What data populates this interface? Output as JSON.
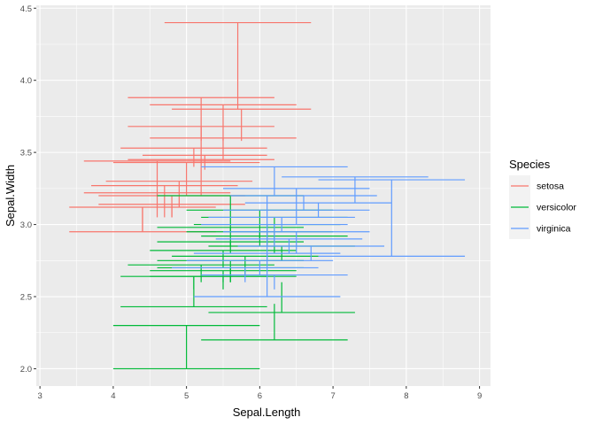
{
  "chart_data": {
    "type": "errorbar",
    "xlabel": "Sepal.Length",
    "ylabel": "Sepal.Width",
    "xlim": [
      2.95,
      9.15
    ],
    "ylim": [
      1.88,
      4.52
    ],
    "xticks": [
      "3",
      "4",
      "5",
      "6",
      "7",
      "8",
      "9"
    ],
    "xtick_values": [
      3,
      4,
      5,
      6,
      7,
      8,
      9
    ],
    "yticks": [
      "2.0",
      "2.5",
      "3.0",
      "3.5",
      "4.0",
      "4.5"
    ],
    "ytick_values": [
      2.0,
      2.5,
      3.0,
      3.5,
      4.0,
      4.5
    ],
    "grid": true,
    "legend": {
      "title": "Species",
      "position": "right"
    },
    "series": [
      {
        "name": "setosa",
        "color": "#F8766D",
        "bars": [
          {
            "xmin": 4.7,
            "xmax": 6.7,
            "y": 4.4,
            "ymin": 3.8,
            "ymax": 4.4
          },
          {
            "xmin": 4.2,
            "xmax": 6.2,
            "y": 3.88,
            "ymin": 3.58,
            "ymax": 3.88
          },
          {
            "xmin": 4.5,
            "xmax": 6.5,
            "y": 3.83,
            "ymin": 3.58,
            "ymax": 3.83
          },
          {
            "xmin": 4.8,
            "xmax": 6.7,
            "y": 3.8,
            "ymin": 3.58,
            "ymax": 3.8
          },
          {
            "xmin": 4.2,
            "xmax": 6.2,
            "y": 3.68,
            "ymin": 3.45,
            "ymax": 3.68
          },
          {
            "xmin": 4.5,
            "xmax": 6.5,
            "y": 3.6,
            "ymin": 3.45,
            "ymax": 3.6
          },
          {
            "xmin": 4.1,
            "xmax": 6.1,
            "y": 3.53,
            "ymin": 3.4,
            "ymax": 3.53
          },
          {
            "xmin": 4.4,
            "xmax": 6.1,
            "y": 3.48,
            "ymin": 3.38,
            "ymax": 3.48
          },
          {
            "xmin": 3.6,
            "xmax": 5.6,
            "y": 3.44,
            "ymin": 3.2,
            "ymax": 3.44
          },
          {
            "xmin": 4.0,
            "xmax": 6.0,
            "y": 3.43,
            "ymin": 3.2,
            "ymax": 3.43
          },
          {
            "xmin": 4.2,
            "xmax": 6.2,
            "y": 3.45,
            "ymin": 3.2,
            "ymax": 3.45
          },
          {
            "xmin": 3.9,
            "xmax": 5.9,
            "y": 3.3,
            "ymin": 3.12,
            "ymax": 3.3
          },
          {
            "xmin": 3.7,
            "xmax": 5.7,
            "y": 3.27,
            "ymin": 3.05,
            "ymax": 3.27
          },
          {
            "xmin": 3.6,
            "xmax": 5.6,
            "y": 3.22,
            "ymin": 3.05,
            "ymax": 3.22
          },
          {
            "xmin": 3.8,
            "xmax": 5.8,
            "y": 3.2,
            "ymin": 3.05,
            "ymax": 3.2
          },
          {
            "xmin": 3.8,
            "xmax": 5.8,
            "y": 3.14,
            "ymin": 3.05,
            "ymax": 3.14
          },
          {
            "xmin": 3.4,
            "xmax": 5.4,
            "y": 3.12,
            "ymin": 2.95,
            "ymax": 3.12
          },
          {
            "xmin": 3.4,
            "xmax": 5.4,
            "y": 2.95,
            "ymin": 2.95,
            "ymax": 3.12
          }
        ]
      },
      {
        "name": "versicolor",
        "color": "#00BA38",
        "bars": [
          {
            "xmin": 4.6,
            "xmax": 6.6,
            "y": 3.2,
            "ymin": 2.95,
            "ymax": 3.2
          },
          {
            "xmin": 5.0,
            "xmax": 7.0,
            "y": 3.1,
            "ymin": 2.9,
            "ymax": 3.1
          },
          {
            "xmin": 5.2,
            "xmax": 7.2,
            "y": 3.05,
            "ymin": 2.9,
            "ymax": 3.05
          },
          {
            "xmin": 5.1,
            "xmax": 7.1,
            "y": 3.0,
            "ymin": 2.85,
            "ymax": 3.0
          },
          {
            "xmin": 4.6,
            "xmax": 6.6,
            "y": 2.98,
            "ymin": 2.85,
            "ymax": 2.98
          },
          {
            "xmin": 5.0,
            "xmax": 7.0,
            "y": 2.95,
            "ymin": 2.85,
            "ymax": 2.95
          },
          {
            "xmin": 5.2,
            "xmax": 7.2,
            "y": 2.92,
            "ymin": 2.8,
            "ymax": 2.92
          },
          {
            "xmin": 4.6,
            "xmax": 6.6,
            "y": 2.88,
            "ymin": 2.8,
            "ymax": 2.88
          },
          {
            "xmin": 5.3,
            "xmax": 7.3,
            "y": 2.85,
            "ymin": 2.75,
            "ymax": 2.85
          },
          {
            "xmin": 4.5,
            "xmax": 6.5,
            "y": 2.82,
            "ymin": 2.7,
            "ymax": 2.82
          },
          {
            "xmin": 4.8,
            "xmax": 6.8,
            "y": 2.78,
            "ymin": 2.65,
            "ymax": 2.78
          },
          {
            "xmin": 4.6,
            "xmax": 6.6,
            "y": 2.75,
            "ymin": 2.6,
            "ymax": 2.75
          },
          {
            "xmin": 4.2,
            "xmax": 6.2,
            "y": 2.72,
            "ymin": 2.6,
            "ymax": 2.72
          },
          {
            "xmin": 4.6,
            "xmax": 6.6,
            "y": 2.7,
            "ymin": 2.6,
            "ymax": 2.7
          },
          {
            "xmin": 4.5,
            "xmax": 6.5,
            "y": 2.68,
            "ymin": 2.6,
            "ymax": 2.68
          },
          {
            "xmin": 4.5,
            "xmax": 6.5,
            "y": 2.64,
            "ymin": 2.55,
            "ymax": 2.64
          },
          {
            "xmin": 4.1,
            "xmax": 6.1,
            "y": 2.64,
            "ymin": 2.55,
            "ymax": 2.64
          },
          {
            "xmin": 4.1,
            "xmax": 6.1,
            "y": 2.43,
            "ymin": 2.43,
            "ymax": 2.64
          },
          {
            "xmin": 5.3,
            "xmax": 7.3,
            "y": 2.39,
            "ymin": 2.39,
            "ymax": 2.6
          },
          {
            "xmin": 5.2,
            "xmax": 7.2,
            "y": 2.2,
            "ymin": 2.2,
            "ymax": 2.45
          },
          {
            "xmin": 4.0,
            "xmax": 6.0,
            "y": 2.3,
            "ymin": 2.3,
            "ymax": 2.3
          },
          {
            "xmin": 4.0,
            "xmax": 6.0,
            "y": 2.0,
            "ymin": 2.0,
            "ymax": 2.3
          }
        ]
      },
      {
        "name": "virginica",
        "color": "#619CFF",
        "bars": [
          {
            "xmin": 5.2,
            "xmax": 7.2,
            "y": 3.4,
            "ymin": 3.2,
            "ymax": 3.4
          },
          {
            "xmin": 6.3,
            "xmax": 8.3,
            "y": 3.33,
            "ymin": 3.15,
            "ymax": 3.33
          },
          {
            "xmin": 6.8,
            "xmax": 8.8,
            "y": 3.31,
            "ymin": 2.78,
            "ymax": 3.31
          },
          {
            "xmin": 5.5,
            "xmax": 7.5,
            "y": 3.25,
            "ymin": 3.1,
            "ymax": 3.25
          },
          {
            "xmin": 5.6,
            "xmax": 7.6,
            "y": 3.2,
            "ymin": 3.1,
            "ymax": 3.2
          },
          {
            "xmin": 5.8,
            "xmax": 7.8,
            "y": 3.15,
            "ymin": 3.05,
            "ymax": 3.15
          },
          {
            "xmin": 5.5,
            "xmax": 7.5,
            "y": 3.1,
            "ymin": 3.0,
            "ymax": 3.1
          },
          {
            "xmin": 5.3,
            "xmax": 7.3,
            "y": 3.05,
            "ymin": 2.95,
            "ymax": 3.05
          },
          {
            "xmin": 5.2,
            "xmax": 7.2,
            "y": 3.0,
            "ymin": 2.85,
            "ymax": 3.0
          },
          {
            "xmin": 5.5,
            "xmax": 7.5,
            "y": 2.95,
            "ymin": 2.8,
            "ymax": 2.95
          },
          {
            "xmin": 5.4,
            "xmax": 7.4,
            "y": 2.9,
            "ymin": 2.8,
            "ymax": 2.9
          },
          {
            "xmin": 5.7,
            "xmax": 7.7,
            "y": 2.85,
            "ymin": 2.75,
            "ymax": 2.85
          },
          {
            "xmin": 5.1,
            "xmax": 7.1,
            "y": 2.8,
            "ymin": 2.75,
            "ymax": 2.8
          },
          {
            "xmin": 6.8,
            "xmax": 8.8,
            "y": 2.78,
            "ymin": 2.78,
            "ymax": 2.78
          },
          {
            "xmin": 5.0,
            "xmax": 7.0,
            "y": 2.75,
            "ymin": 2.65,
            "ymax": 2.75
          },
          {
            "xmin": 4.8,
            "xmax": 6.8,
            "y": 2.7,
            "ymin": 2.6,
            "ymax": 2.7
          },
          {
            "xmin": 5.2,
            "xmax": 7.2,
            "y": 2.65,
            "ymin": 2.55,
            "ymax": 2.65
          },
          {
            "xmin": 5.1,
            "xmax": 7.1,
            "y": 2.5,
            "ymin": 2.5,
            "ymax": 3.2
          }
        ]
      }
    ]
  }
}
